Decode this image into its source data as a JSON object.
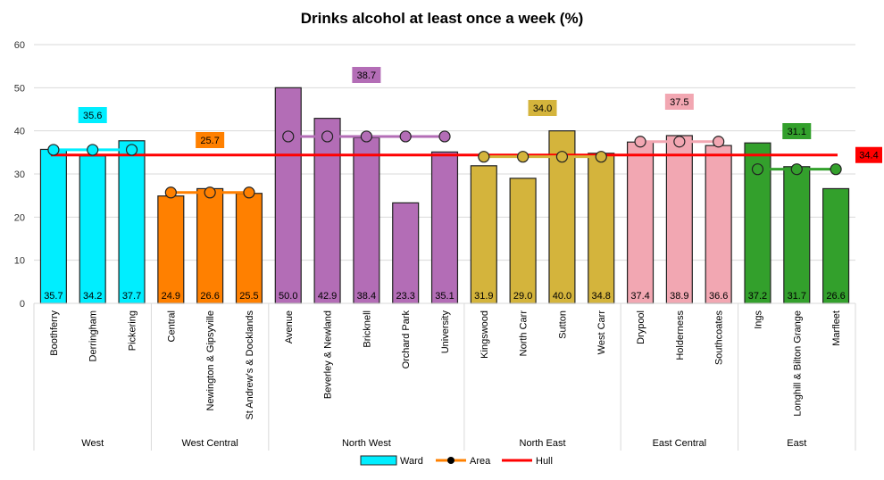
{
  "chart_data": {
    "type": "bar",
    "title": "Drinks alcohol at least once a week (%)",
    "xlabel": "",
    "ylabel": "",
    "ylim": [
      0,
      60
    ],
    "yticks": [
      0,
      10,
      20,
      30,
      40,
      50,
      60
    ],
    "grid": true,
    "legend_position": "bottom",
    "groups": [
      {
        "name": "West",
        "color": "#00EEFF",
        "area_value": 35.6,
        "wards": [
          "Boothferry",
          "Derringham",
          "Pickering"
        ],
        "values": [
          35.7,
          34.2,
          37.7
        ]
      },
      {
        "name": "West Central",
        "color": "#FF8000",
        "area_value": 25.7,
        "wards": [
          "Central",
          "Newington & Gipsyville",
          "St Andrew's & Docklands"
        ],
        "values": [
          24.9,
          26.6,
          25.5
        ]
      },
      {
        "name": "North West",
        "color": "#B36DB6",
        "area_value": 38.7,
        "wards": [
          "Avenue",
          "Beverley & Newland",
          "Bricknell",
          "Orchard Park",
          "University"
        ],
        "values": [
          50.0,
          42.9,
          38.4,
          23.3,
          35.1
        ]
      },
      {
        "name": "North East",
        "color": "#D4B43C",
        "area_value": 34.0,
        "wards": [
          "Kingswood",
          "North Carr",
          "Sutton",
          "West Carr"
        ],
        "values": [
          31.9,
          29.0,
          40.0,
          34.8
        ]
      },
      {
        "name": "East Central",
        "color": "#F2A7B2",
        "area_value": 37.5,
        "wards": [
          "Drypool",
          "Holderness",
          "Southcoates"
        ],
        "values": [
          37.4,
          38.9,
          36.6
        ]
      },
      {
        "name": "East",
        "color": "#33A02C",
        "area_value": 31.1,
        "wards": [
          "Ings",
          "Longhill & Bilton Grange",
          "Marfleet"
        ],
        "values": [
          37.2,
          31.7,
          26.6
        ]
      }
    ],
    "hull_value": 34.4,
    "hull_color": "#FF0000",
    "legend": [
      "Ward",
      "Area",
      "Hull"
    ]
  }
}
